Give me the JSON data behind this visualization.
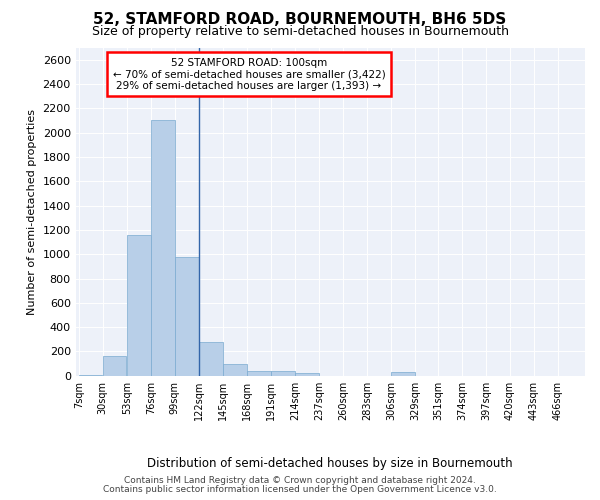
{
  "title": "52, STAMFORD ROAD, BOURNEMOUTH, BH6 5DS",
  "subtitle": "Size of property relative to semi-detached houses in Bournemouth",
  "xlabel": "Distribution of semi-detached houses by size in Bournemouth",
  "ylabel": "Number of semi-detached properties",
  "footer1": "Contains HM Land Registry data © Crown copyright and database right 2024.",
  "footer2": "Contains public sector information licensed under the Open Government Licence v3.0.",
  "annotation_title": "52 STAMFORD ROAD: 100sqm",
  "annotation_line1": "← 70% of semi-detached houses are smaller (3,422)",
  "annotation_line2": "29% of semi-detached houses are larger (1,393) →",
  "property_size_bin": 99,
  "bin_width": 23,
  "bins": [
    7,
    30,
    53,
    76,
    99,
    122,
    145,
    168,
    191,
    214,
    237,
    260,
    283,
    306,
    329,
    351,
    374,
    397,
    420,
    443,
    466
  ],
  "values": [
    5,
    160,
    1160,
    2100,
    975,
    280,
    95,
    42,
    42,
    25,
    0,
    0,
    0,
    28,
    0,
    0,
    0,
    0,
    0,
    0
  ],
  "bar_color": "#b8cfe8",
  "bar_edge_color": "#7aaad0",
  "vline_color": "#3366aa",
  "bg_color": "#edf1f9",
  "ylim": [
    0,
    2700
  ],
  "yticks": [
    0,
    200,
    400,
    600,
    800,
    1000,
    1200,
    1400,
    1600,
    1800,
    2000,
    2200,
    2400,
    2600
  ],
  "title_fontsize": 11,
  "subtitle_fontsize": 9,
  "ylabel_fontsize": 8,
  "xtick_fontsize": 7,
  "ytick_fontsize": 8,
  "footer_fontsize": 6.5,
  "xlabel_fontsize": 8.5
}
